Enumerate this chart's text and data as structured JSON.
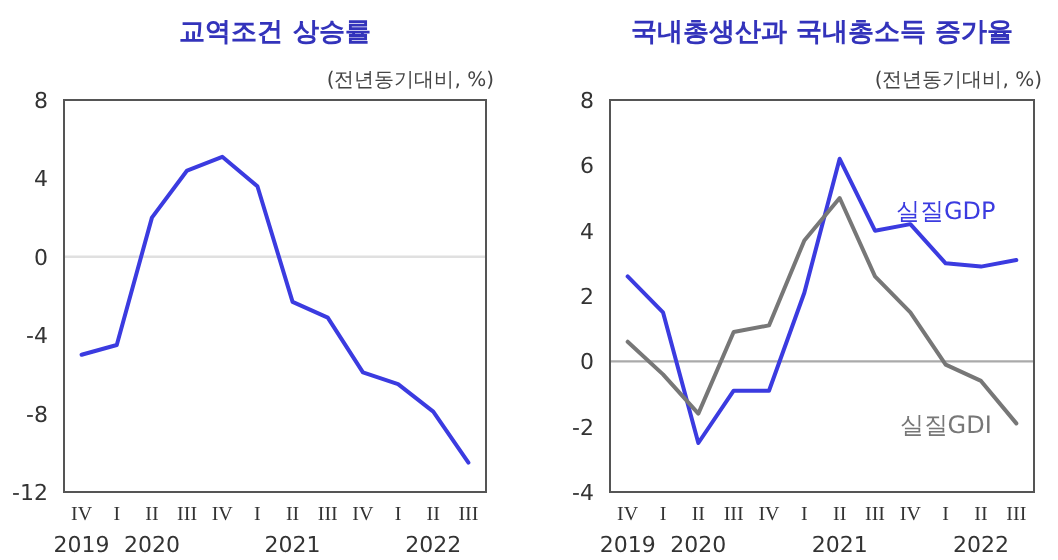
{
  "chart_data": [
    {
      "type": "line",
      "title": "교역조건 상승률",
      "ylabel": "(전년동기대비, %)",
      "categories": [
        "IV\n2019",
        "I",
        "II\n2020",
        "III",
        "IV",
        "I",
        "II\n2021",
        "III",
        "IV",
        "I",
        "II\n2022",
        "III"
      ],
      "series": [
        {
          "color": "#3b3be0",
          "values": [
            -5.0,
            -4.5,
            2.0,
            4.4,
            5.1,
            3.6,
            -2.3,
            -3.1,
            -5.9,
            -6.5,
            -7.9,
            -10.5
          ]
        }
      ],
      "ylim": [
        -12,
        8
      ],
      "yticks": [
        -12,
        -8,
        -4,
        0,
        4,
        8
      ],
      "ref_lines": [
        {
          "axis": "y",
          "value": 0,
          "color": "#e0e0e0"
        }
      ],
      "grid": false,
      "legend": false,
      "marker": "none",
      "line_style": "solid"
    },
    {
      "type": "line",
      "title": "국내총생산과 국내총소득 증가율",
      "ylabel": "(전년동기대비, %)",
      "categories": [
        "IV\n2019",
        "I",
        "II\n2020",
        "III",
        "IV",
        "I",
        "II\n2021",
        "III",
        "IV",
        "I",
        "II\n2022",
        "III"
      ],
      "series": [
        {
          "name": "실질GDP",
          "color": "#3b3be0",
          "values": [
            2.6,
            1.5,
            -2.5,
            -0.9,
            -0.9,
            2.1,
            6.2,
            4.0,
            4.2,
            3.0,
            2.9,
            3.1
          ]
        },
        {
          "name": "실질GDI",
          "color": "#777777",
          "values": [
            0.6,
            -0.4,
            -1.6,
            0.9,
            1.1,
            3.7,
            5.0,
            2.6,
            1.5,
            -0.1,
            -0.6,
            -1.9
          ]
        }
      ],
      "ylim": [
        -4,
        8
      ],
      "yticks": [
        -4,
        -2,
        0,
        2,
        4,
        6,
        8
      ],
      "ref_lines": [
        {
          "axis": "y",
          "value": 0,
          "color": "#aaaaaa"
        }
      ],
      "grid": false,
      "legend": false,
      "marker": "none",
      "line_style": "solid"
    }
  ]
}
